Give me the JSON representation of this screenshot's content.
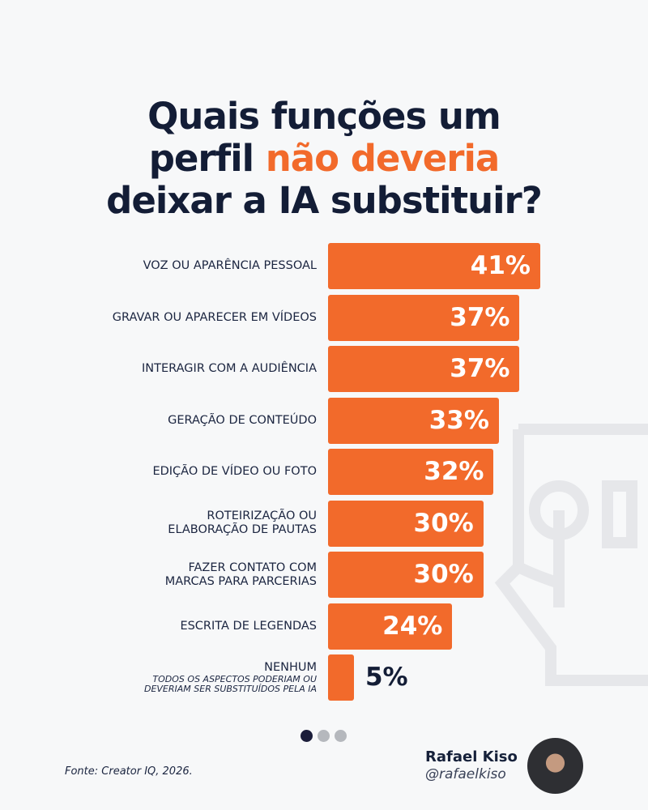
{
  "title": {
    "line1": "Quais funções um",
    "line2_pre": "perfil ",
    "line2_highlight": "não deveria",
    "line3": "deixar a IA substituir?"
  },
  "colors": {
    "bar": "#f26a2b",
    "text": "#131d36",
    "background": "#f7f8f9"
  },
  "chart_data": {
    "type": "bar",
    "orientation": "horizontal",
    "xlim": [
      0,
      41
    ],
    "categories": [
      "VOZ OU APARÊNCIA PESSOAL",
      "GRAVAR OU APARECER EM VÍDEOS",
      "INTERAGIR COM A AUDIÊNCIA",
      "GERAÇÃO DE CONTEÚDO",
      "EDIÇÃO DE VÍDEO OU FOTO",
      "ROTEIRIZAÇÃO OU ELABORAÇÃO DE PAUTAS",
      "FAZER CONTATO COM MARCAS PARA PARCERIAS",
      "ESCRITA DE LEGENDAS",
      "NENHUM"
    ],
    "label_lines": [
      [
        "VOZ OU APARÊNCIA PESSOAL"
      ],
      [
        "GRAVAR OU APARECER EM VÍDEOS"
      ],
      [
        "INTERAGIR COM A AUDIÊNCIA"
      ],
      [
        "GERAÇÃO DE CONTEÚDO"
      ],
      [
        "EDIÇÃO DE VÍDEO OU FOTO"
      ],
      [
        "ROTEIRIZAÇÃO OU",
        "ELABORAÇÃO DE PAUTAS"
      ],
      [
        "FAZER CONTATO COM",
        "MARCAS PARA PARCERIAS"
      ],
      [
        "ESCRITA DE LEGENDAS"
      ],
      [
        "NENHUM"
      ]
    ],
    "sublabels": {
      "8": [
        "TODOS OS ASPECTOS PODERIAM OU",
        "DEVERIAM SER SUBSTITUÍDOS PELA IA"
      ]
    },
    "values": [
      41,
      37,
      37,
      33,
      32,
      30,
      30,
      24,
      5
    ],
    "data_labels": [
      "41%",
      "37%",
      "37%",
      "33%",
      "32%",
      "30%",
      "30%",
      "24%",
      "5%"
    ]
  },
  "pagination": {
    "total": 3,
    "current": 1
  },
  "footer": {
    "source": "Fonte: Creator IQ, 2026.",
    "author_name": "Rafael Kiso",
    "author_handle": "@rafaelkiso"
  }
}
